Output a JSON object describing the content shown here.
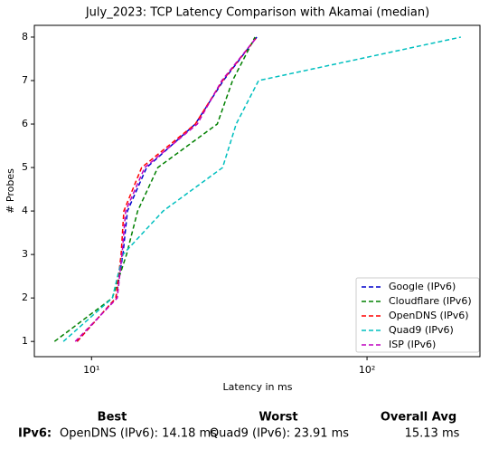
{
  "chart_data": {
    "type": "line",
    "title": "July_2023: TCP Latency Comparison with Akamai (median)",
    "xlabel": "Latency in ms",
    "ylabel": "# Probes",
    "xscale": "log",
    "xlim": [
      6.2,
      257
    ],
    "ylim": [
      0.65,
      8.27
    ],
    "xticks": [
      {
        "value": 10,
        "label": "10¹"
      },
      {
        "value": 100,
        "label": "10²"
      }
    ],
    "yticks": [
      1,
      2,
      3,
      4,
      5,
      6,
      7,
      8
    ],
    "legend": "lower right",
    "series": [
      {
        "name": "Google (IPv6)",
        "color": "#0000cc",
        "x": [
          8.86,
          12.26,
          13.0,
          13.5,
          15.85,
          23.8,
          30.1,
          39.8
        ],
        "values": [
          1,
          2,
          3,
          4,
          5,
          6,
          7,
          8
        ]
      },
      {
        "name": "Cloudflare (IPv6)",
        "color": "#008000",
        "x": [
          7.34,
          11.9,
          13.4,
          14.7,
          17.4,
          28.6,
          32.5,
          39.2
        ],
        "values": [
          1,
          2,
          3,
          4,
          5,
          6,
          7,
          8
        ]
      },
      {
        "name": "OpenDNS (IPv6)",
        "color": "#ff0000",
        "x": [
          8.86,
          12.26,
          12.8,
          13.1,
          15.2,
          23.8,
          29.9,
          39.8
        ],
        "values": [
          1,
          2,
          3,
          4,
          5,
          6,
          7,
          8
        ]
      },
      {
        "name": "Quad9 (IPv6)",
        "color": "#00bfbf",
        "x": [
          7.9,
          11.9,
          13.0,
          18.2,
          29.9,
          33.5,
          40.4,
          219
        ],
        "values": [
          1,
          2,
          3,
          4,
          5,
          6,
          7,
          8
        ]
      },
      {
        "name": "ISP (IPv6)",
        "color": "#bf00bf",
        "x": [
          8.73,
          12.4,
          12.9,
          13.3,
          15.6,
          24.2,
          29.7,
          39.8
        ],
        "values": [
          1,
          2,
          3,
          4,
          5,
          6,
          7,
          8
        ]
      }
    ]
  },
  "summary": {
    "headers": [
      "Best",
      "Worst",
      "Overall Avg"
    ],
    "row_label": "IPv6:",
    "row": [
      "OpenDNS (IPv6): 14.18 ms",
      "Quad9 (IPv6): 23.91 ms",
      "15.13 ms"
    ]
  }
}
